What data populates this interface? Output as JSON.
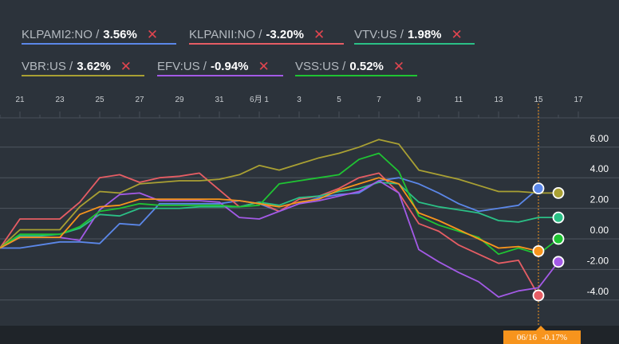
{
  "legend": [
    {
      "symbol": "KLPAMI2:NO",
      "value": "3.56%",
      "color": "#5b87e8",
      "close": "✕"
    },
    {
      "symbol": "KLPANII:NO",
      "value": "-3.20%",
      "color": "#e65d64",
      "close": "✕"
    },
    {
      "symbol": "VTV:US",
      "value": "1.98%",
      "color": "#2bc086",
      "close": "✕"
    },
    {
      "symbol": "VBR:US",
      "value": "3.62%",
      "color": "#a9a033",
      "close": "✕"
    },
    {
      "symbol": "EFV:US",
      "value": "-0.94%",
      "color": "#a35ae6",
      "close": "✕"
    },
    {
      "symbol": "VSS:US",
      "value": "0.52%",
      "color": "#1fc433",
      "close": "✕"
    }
  ],
  "tooltip": {
    "date": "06/16",
    "value": "-0.17%",
    "color": "#f7941d"
  },
  "chart_data": {
    "type": "line",
    "x": [
      "5/20",
      "5/21",
      "5/22",
      "5/23",
      "5/24",
      "5/25",
      "5/26",
      "5/27",
      "5/28",
      "5/29",
      "5/30",
      "5/31",
      "6/1",
      "6/2",
      "6/3",
      "6/4",
      "6/5",
      "6/6",
      "6/7",
      "6/8",
      "6/9",
      "6/10",
      "6/11",
      "6/12",
      "6/13",
      "6/14",
      "6/15",
      "6/16",
      "6/17"
    ],
    "x_tick_labels": [
      "21",
      "23",
      "25",
      "27",
      "29",
      "31",
      "6月 1",
      "3",
      "5",
      "7",
      "9",
      "11",
      "13",
      "15",
      "17"
    ],
    "y_ticks": [
      6,
      4,
      2,
      0,
      -2,
      -4
    ],
    "y_tick_labels": [
      "6.00",
      "4.00",
      "2.00",
      "0.00",
      "-2.00",
      "-4.00"
    ],
    "ylim": [
      -5.9,
      8.6
    ],
    "highlight_x": "6/16",
    "series": [
      {
        "name": "KLPAMI2:NO",
        "color": "#5b87e8",
        "end_marker": 3.3,
        "values": [
          -0.6,
          -0.6,
          -0.4,
          -0.2,
          -0.2,
          -0.3,
          1.0,
          0.9,
          2.3,
          2.3,
          2.3,
          2.3,
          2.5,
          2.3,
          1.8,
          2.3,
          2.7,
          2.9,
          3.0,
          3.8,
          4.0,
          3.6,
          3.0,
          2.3,
          1.8,
          2.0,
          2.2,
          3.3,
          null
        ]
      },
      {
        "name": "KLPANII:NO",
        "color": "#e65d64",
        "end_marker": -3.7,
        "values": [
          -0.6,
          1.3,
          1.3,
          1.3,
          2.4,
          4.0,
          4.2,
          3.7,
          4.0,
          4.1,
          4.3,
          3.2,
          2.1,
          2.4,
          1.8,
          2.6,
          2.8,
          3.3,
          4.0,
          4.3,
          3.0,
          1.0,
          0.5,
          -0.4,
          -1.0,
          -1.6,
          -1.4,
          -3.7,
          null
        ]
      },
      {
        "name": "VTV:US",
        "color": "#2bc086",
        "end_marker": 1.4,
        "values": [
          -0.6,
          0.2,
          0.2,
          0.3,
          0.7,
          1.6,
          1.5,
          2.0,
          2.0,
          2.0,
          2.1,
          2.1,
          2.1,
          2.4,
          2.2,
          2.7,
          2.8,
          3.1,
          3.3,
          3.7,
          3.6,
          2.4,
          2.1,
          1.9,
          1.7,
          1.2,
          1.1,
          1.4,
          1.4
        ]
      },
      {
        "name": "VBR:US",
        "color": "#a9a033",
        "end_marker": 3.0,
        "values": [
          -0.6,
          0.6,
          0.6,
          0.6,
          2.1,
          3.1,
          3.0,
          3.6,
          3.7,
          3.8,
          3.8,
          3.9,
          4.2,
          4.8,
          4.5,
          4.9,
          5.3,
          5.6,
          6.0,
          6.5,
          6.2,
          4.5,
          4.2,
          3.9,
          3.5,
          3.1,
          3.1,
          3.0,
          3.0
        ]
      },
      {
        "name": "EFV:US",
        "color": "#a35ae6",
        "end_marker": -1.5,
        "values": [
          -0.6,
          0.1,
          0.1,
          0.1,
          -0.1,
          1.9,
          2.9,
          3.0,
          2.5,
          2.5,
          2.5,
          2.4,
          1.4,
          1.3,
          1.8,
          2.3,
          2.5,
          2.8,
          3.1,
          3.8,
          3.0,
          -0.7,
          -1.5,
          -2.2,
          -2.8,
          -3.8,
          -3.4,
          -3.2,
          -1.5
        ]
      },
      {
        "name": "VSS:US",
        "color": "#1fc433",
        "end_marker": 0.0,
        "values": [
          -0.6,
          0.3,
          0.3,
          0.3,
          0.8,
          1.8,
          2.0,
          2.3,
          2.2,
          2.2,
          2.2,
          2.2,
          2.1,
          2.2,
          3.6,
          3.8,
          4.0,
          4.2,
          5.2,
          5.6,
          4.4,
          1.5,
          0.9,
          0.5,
          0.1,
          -1.0,
          -0.6,
          -1.0,
          0.0
        ]
      },
      {
        "name": "",
        "color": "#f7941d",
        "end_marker": -0.8,
        "values": [
          -0.6,
          0.1,
          0.1,
          0.1,
          1.6,
          2.1,
          2.2,
          2.6,
          2.6,
          2.6,
          2.6,
          2.6,
          2.5,
          2.3,
          2.1,
          2.4,
          2.6,
          3.2,
          3.6,
          4.0,
          3.6,
          1.7,
          1.2,
          0.6,
          0.0,
          -0.6,
          -0.5,
          -0.8,
          null
        ]
      }
    ]
  }
}
